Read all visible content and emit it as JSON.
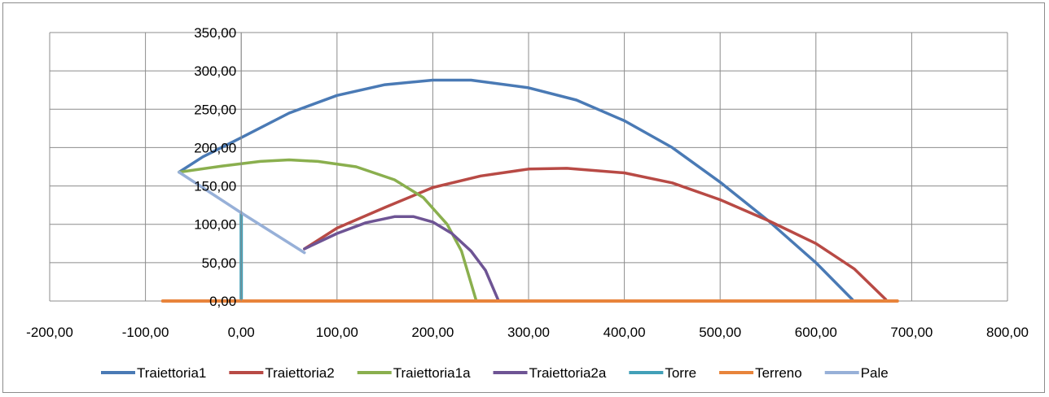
{
  "chart_data": {
    "type": "scatter",
    "title": "",
    "xlabel": "",
    "ylabel": "",
    "xlim": [
      -200,
      800
    ],
    "ylim": [
      0,
      350
    ],
    "xticks": [
      "-200,00",
      "-100,00",
      "0,00",
      "100,00",
      "200,00",
      "300,00",
      "400,00",
      "500,00",
      "600,00",
      "700,00",
      "800,00"
    ],
    "yticks": [
      "0,00",
      "50,00",
      "100,00",
      "150,00",
      "200,00",
      "250,00",
      "300,00",
      "350,00"
    ],
    "grid": true,
    "legend_position": "bottom",
    "series": [
      {
        "name": "Traiettoria1",
        "color": "#4a7ab5",
        "points": [
          [
            -65,
            168
          ],
          [
            -40,
            188
          ],
          [
            0,
            213
          ],
          [
            50,
            245
          ],
          [
            100,
            268
          ],
          [
            150,
            282
          ],
          [
            200,
            288
          ],
          [
            240,
            288
          ],
          [
            300,
            278
          ],
          [
            350,
            262
          ],
          [
            400,
            235
          ],
          [
            450,
            200
          ],
          [
            500,
            155
          ],
          [
            550,
            105
          ],
          [
            600,
            50
          ],
          [
            638,
            2
          ]
        ]
      },
      {
        "name": "Traiettoria2",
        "color": "#b84a45",
        "points": [
          [
            66,
            68
          ],
          [
            100,
            95
          ],
          [
            150,
            122
          ],
          [
            200,
            148
          ],
          [
            250,
            163
          ],
          [
            300,
            172
          ],
          [
            340,
            173
          ],
          [
            400,
            167
          ],
          [
            450,
            154
          ],
          [
            500,
            132
          ],
          [
            550,
            105
          ],
          [
            600,
            75
          ],
          [
            640,
            42
          ],
          [
            673,
            2
          ]
        ]
      },
      {
        "name": "Traiettoria1a",
        "color": "#8aaf4e",
        "points": [
          [
            -65,
            168
          ],
          [
            -20,
            176
          ],
          [
            20,
            182
          ],
          [
            50,
            184
          ],
          [
            80,
            182
          ],
          [
            120,
            175
          ],
          [
            160,
            158
          ],
          [
            190,
            135
          ],
          [
            215,
            100
          ],
          [
            230,
            65
          ],
          [
            245,
            2
          ]
        ]
      },
      {
        "name": "Traiettoria2a",
        "color": "#6e5494",
        "points": [
          [
            66,
            68
          ],
          [
            100,
            88
          ],
          [
            130,
            102
          ],
          [
            160,
            110
          ],
          [
            180,
            110
          ],
          [
            200,
            103
          ],
          [
            220,
            88
          ],
          [
            240,
            65
          ],
          [
            255,
            40
          ],
          [
            268,
            2
          ]
        ]
      },
      {
        "name": "Torre",
        "color": "#42a0b8",
        "points": [
          [
            0,
            0
          ],
          [
            0,
            115
          ]
        ]
      },
      {
        "name": "Terreno",
        "color": "#e8843b",
        "points": [
          [
            -82,
            0
          ],
          [
            685,
            0
          ]
        ]
      },
      {
        "name": "Pale",
        "color": "#97b0d8",
        "points": [
          [
            -65,
            168
          ],
          [
            0,
            115
          ],
          [
            66,
            63
          ]
        ]
      }
    ]
  }
}
